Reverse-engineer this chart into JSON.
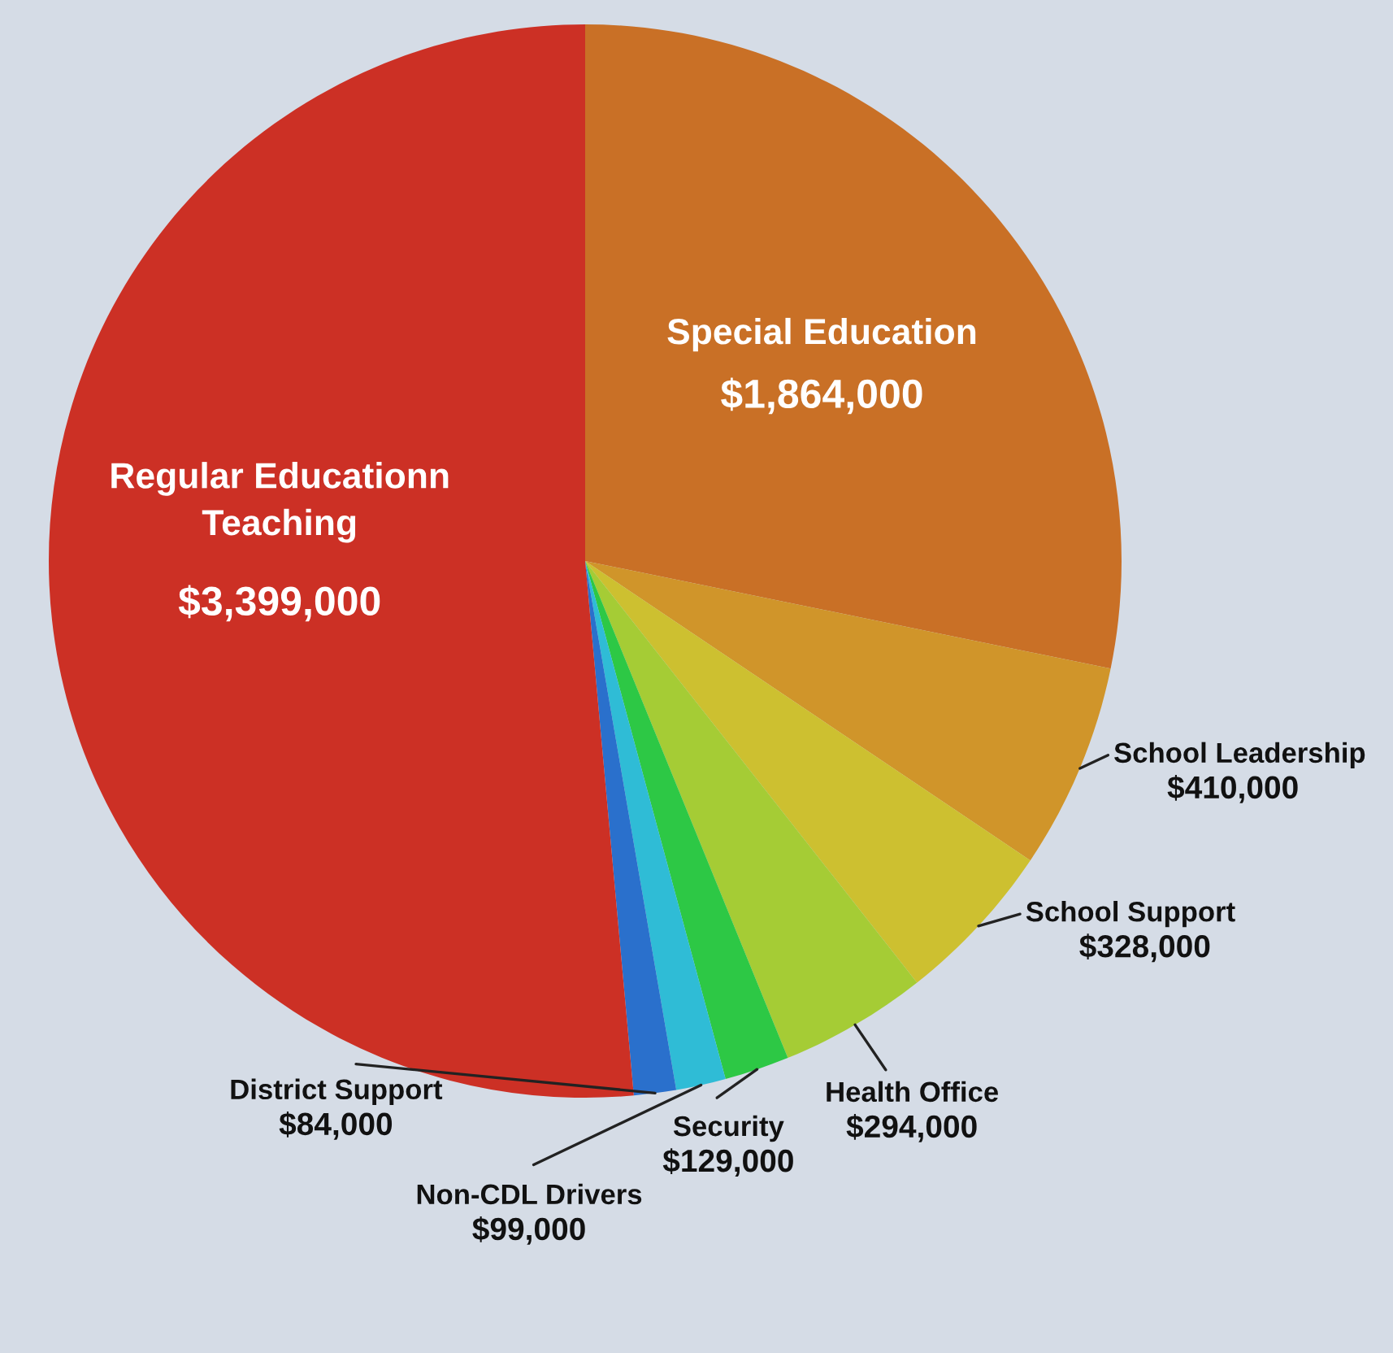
{
  "chart_data": {
    "type": "pie",
    "categories": [
      "Special Education",
      "School Leadership",
      "School Support",
      "Health Office",
      "Security",
      "Non-CDL Drivers",
      "District Support",
      "Regular Educationn\nTeaching"
    ],
    "values": [
      1864000,
      410000,
      328000,
      294000,
      129000,
      99000,
      84000,
      3399000
    ],
    "value_labels": [
      "$1,864,000",
      "$410,000",
      "$328,000",
      "$294,000",
      "$129,000",
      "$99,000",
      "$84,000",
      "$3,399,000"
    ],
    "colors": [
      "#c97026",
      "#d0952a",
      "#cdc030",
      "#a5cc35",
      "#2dc845",
      "#2fbcd6",
      "#2a70cc",
      "#cc3025"
    ],
    "legend": false
  }
}
